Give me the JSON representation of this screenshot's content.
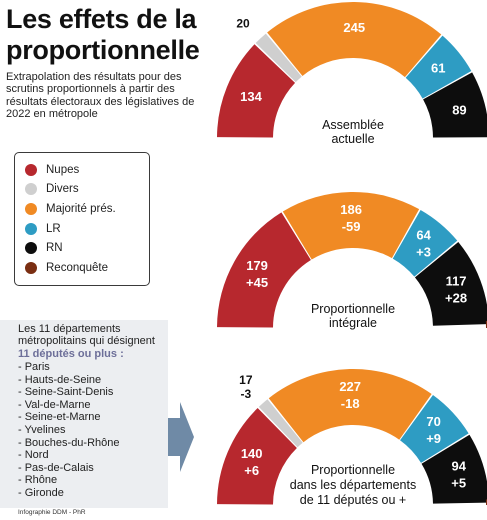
{
  "title": "Les effets de la proportionnelle",
  "subtitle": "Extrapolation des résultats pour des scrutins proportionnels à partir des résultats électoraux des législatives de 2022 en métropole",
  "legend": [
    {
      "label": "Nupes",
      "color": "#b7282e"
    },
    {
      "label": "Divers",
      "color": "#cfcfcf"
    },
    {
      "label": "Majorité prés.",
      "color": "#f08a24"
    },
    {
      "label": "LR",
      "color": "#2e9cc3"
    },
    {
      "label": "RN",
      "color": "#0d0d0d"
    },
    {
      "label": "Reconquête",
      "color": "#7a2e12"
    }
  ],
  "departments": {
    "intro": "Les 11 départements métropolitains qui désignent",
    "highlight": "11 députés ou plus :",
    "items": [
      "- Paris",
      "- Hauts-de-Seine",
      "- Seine-Saint-Denis",
      "- Val-de-Marne",
      "- Seine-et-Marne",
      "- Yvelines",
      "- Bouches-du-Rhône",
      "- Nord",
      "- Pas-de-Calais",
      "- Rhône",
      "- Gironde"
    ]
  },
  "credit": "Infographie DDM - PhR",
  "chart_data": [
    {
      "type": "pie",
      "label": "Assemblée actuelle",
      "slices": [
        {
          "party": "Nupes",
          "value": 134,
          "change": ""
        },
        {
          "party": "Divers",
          "value": 20,
          "change": ""
        },
        {
          "party": "Majorité prés.",
          "value": 245,
          "change": ""
        },
        {
          "party": "LR",
          "value": 61,
          "change": ""
        },
        {
          "party": "RN",
          "value": 89,
          "change": ""
        }
      ]
    },
    {
      "type": "pie",
      "label": "Proportionnelle intégrale",
      "slices": [
        {
          "party": "Nupes",
          "value": 179,
          "change": "+45"
        },
        {
          "party": "Divers",
          "value": 0,
          "change": ""
        },
        {
          "party": "Majorité prés.",
          "value": 186,
          "change": "-59"
        },
        {
          "party": "LR",
          "value": 64,
          "change": "+3"
        },
        {
          "party": "RN",
          "value": 117,
          "change": "+28"
        },
        {
          "party": "Reconquête",
          "value": 4,
          "change": ""
        }
      ]
    },
    {
      "type": "pie",
      "label": "Proportionnelle dans les départements de 11 députés ou +",
      "slices": [
        {
          "party": "Nupes",
          "value": 140,
          "change": "+6"
        },
        {
          "party": "Divers",
          "value": 17,
          "change": "-3"
        },
        {
          "party": "Majorité prés.",
          "value": 227,
          "change": "-18"
        },
        {
          "party": "LR",
          "value": 70,
          "change": "+9"
        },
        {
          "party": "RN",
          "value": 94,
          "change": "+5"
        },
        {
          "party": "Reconquête",
          "value": 2,
          "change": ""
        }
      ]
    }
  ]
}
